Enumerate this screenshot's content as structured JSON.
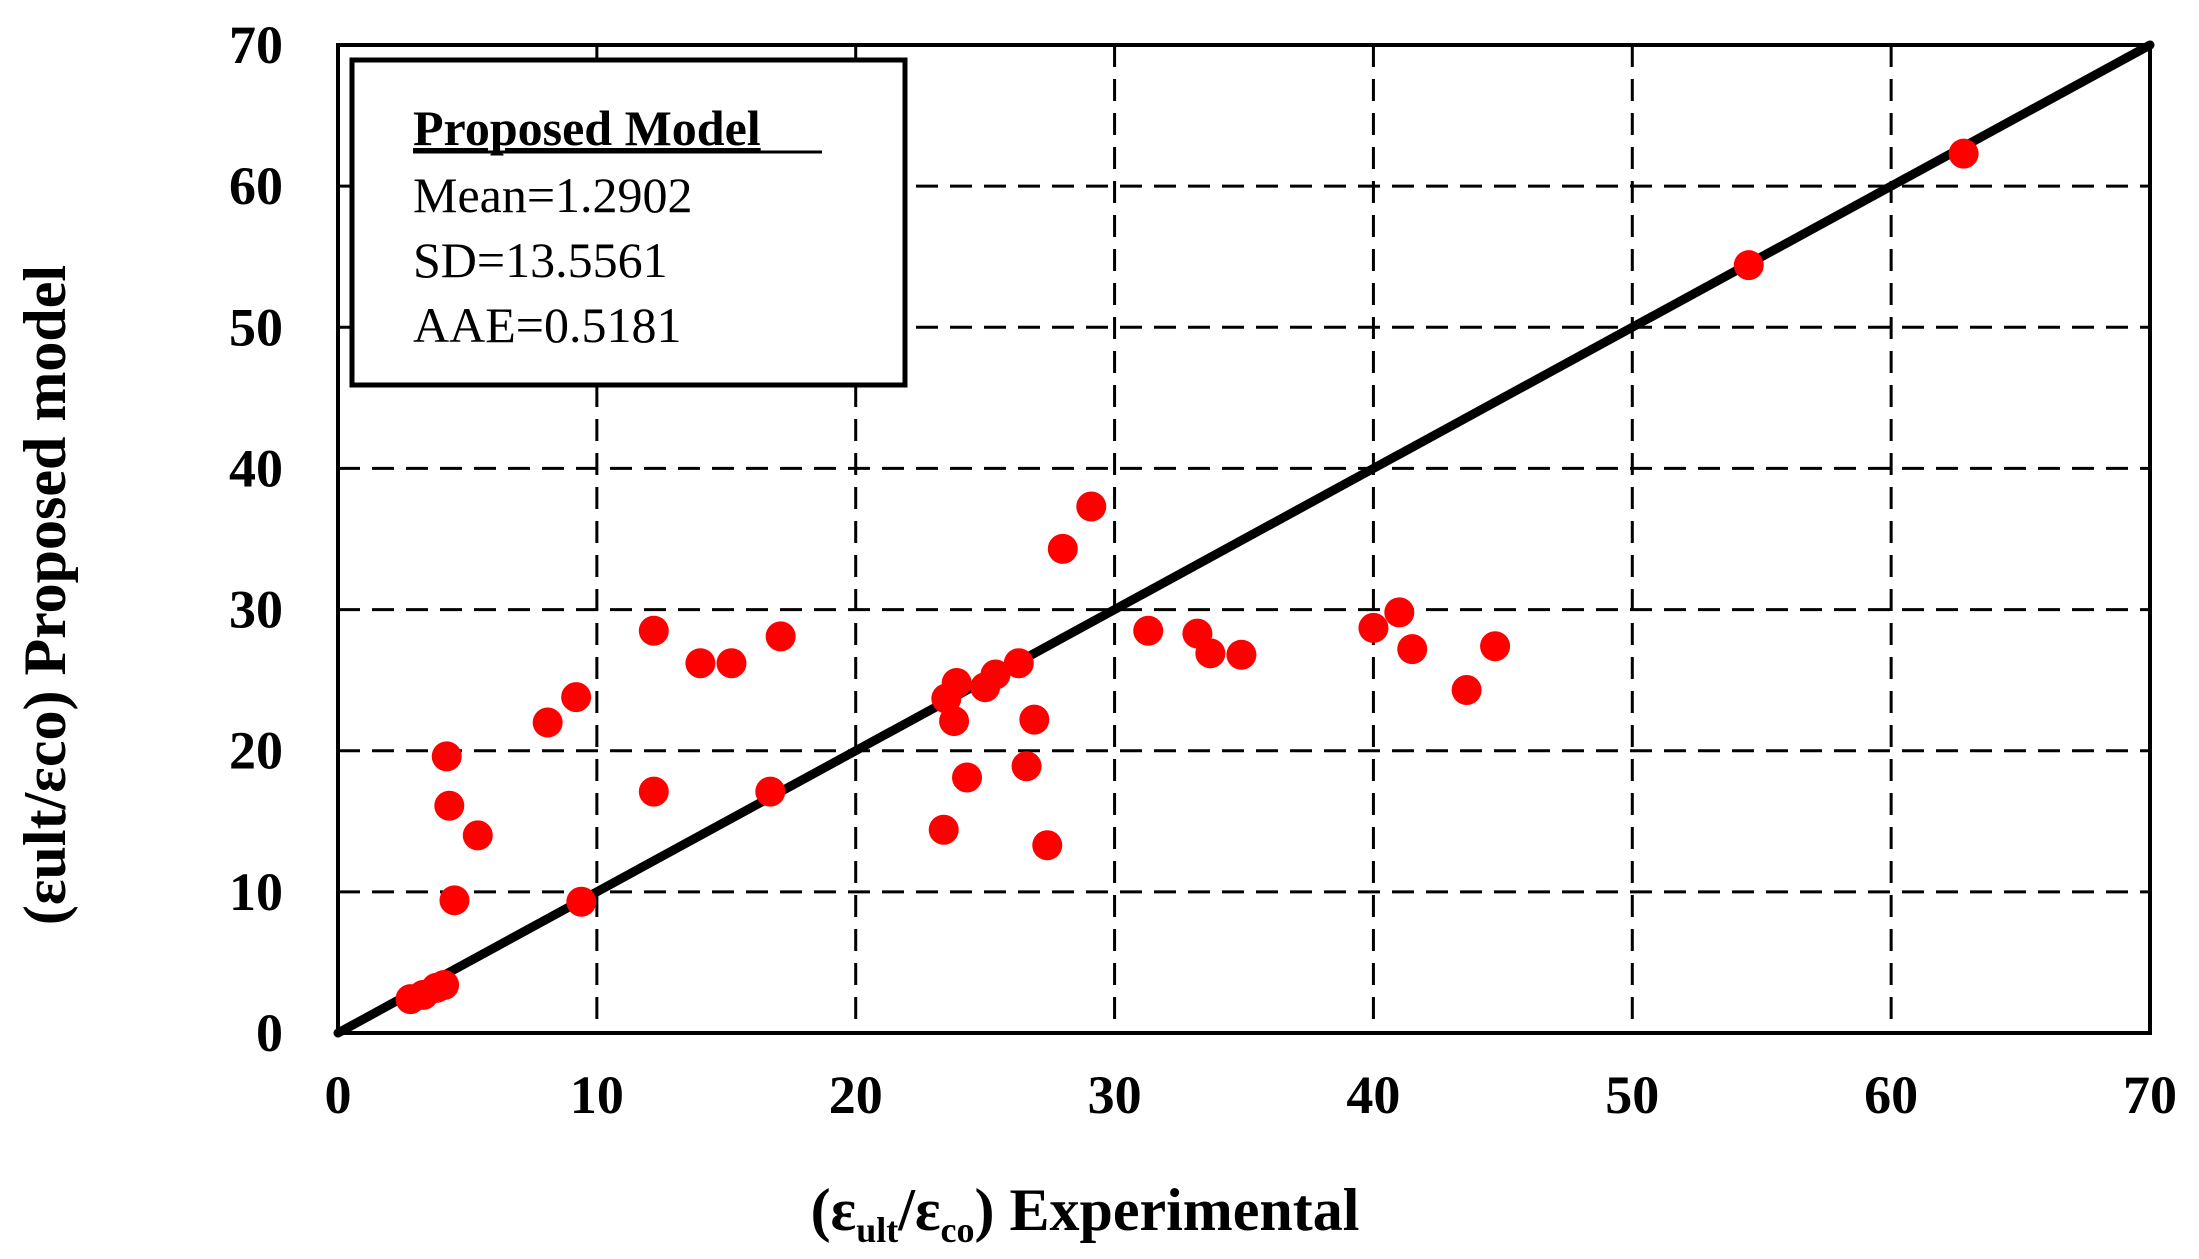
{
  "chart_data": {
    "type": "scatter",
    "title": "",
    "xlabel": "(εult/εco) Experimental",
    "xlabel_parts": {
      "open": "(ε",
      "sub1": "ult",
      "mid": "/ε",
      "sub2": "co",
      "close": ") Experimental"
    },
    "ylabel": "(εult/εco) Proposed model",
    "xlim": [
      0,
      70
    ],
    "ylim": [
      0,
      70
    ],
    "xticks": [
      0,
      10,
      20,
      30,
      40,
      50,
      60,
      70
    ],
    "yticks": [
      0,
      10,
      20,
      30,
      40,
      50,
      60,
      70
    ],
    "grid": true,
    "reference_line": {
      "name": "y = x",
      "from": [
        0,
        0
      ],
      "to": [
        70,
        70
      ],
      "color": "#000000"
    },
    "marker_color": "#ff0000",
    "series": [
      {
        "name": "Proposed model",
        "points": [
          [
            2.8,
            2.4
          ],
          [
            3.3,
            2.7
          ],
          [
            3.8,
            3.2
          ],
          [
            4.1,
            3.4
          ],
          [
            4.2,
            19.6
          ],
          [
            4.3,
            16.1
          ],
          [
            4.5,
            9.4
          ],
          [
            5.4,
            14.0
          ],
          [
            8.1,
            22.0
          ],
          [
            9.2,
            23.8
          ],
          [
            9.4,
            9.3
          ],
          [
            12.2,
            28.5
          ],
          [
            12.2,
            17.1
          ],
          [
            14.0,
            26.2
          ],
          [
            15.2,
            26.2
          ],
          [
            16.7,
            17.1
          ],
          [
            17.1,
            28.1
          ],
          [
            23.4,
            14.4
          ],
          [
            23.5,
            23.7
          ],
          [
            23.8,
            22.1
          ],
          [
            23.9,
            24.8
          ],
          [
            24.3,
            18.1
          ],
          [
            25.0,
            24.5
          ],
          [
            25.4,
            25.4
          ],
          [
            26.3,
            26.2
          ],
          [
            26.6,
            18.9
          ],
          [
            26.9,
            22.2
          ],
          [
            27.4,
            13.3
          ],
          [
            28.0,
            34.3
          ],
          [
            29.1,
            37.3
          ],
          [
            31.3,
            28.5
          ],
          [
            33.2,
            28.3
          ],
          [
            33.7,
            26.9
          ],
          [
            34.9,
            26.8
          ],
          [
            40.0,
            28.7
          ],
          [
            41.0,
            29.8
          ],
          [
            41.5,
            27.2
          ],
          [
            43.6,
            24.3
          ],
          [
            44.7,
            27.4
          ],
          [
            54.5,
            54.4
          ],
          [
            62.8,
            62.3
          ]
        ]
      }
    ]
  },
  "stats_box": {
    "title": "Proposed Model",
    "lines": [
      "Mean=1.2902",
      "SD=13.5561",
      "AAE=0.5181"
    ]
  }
}
